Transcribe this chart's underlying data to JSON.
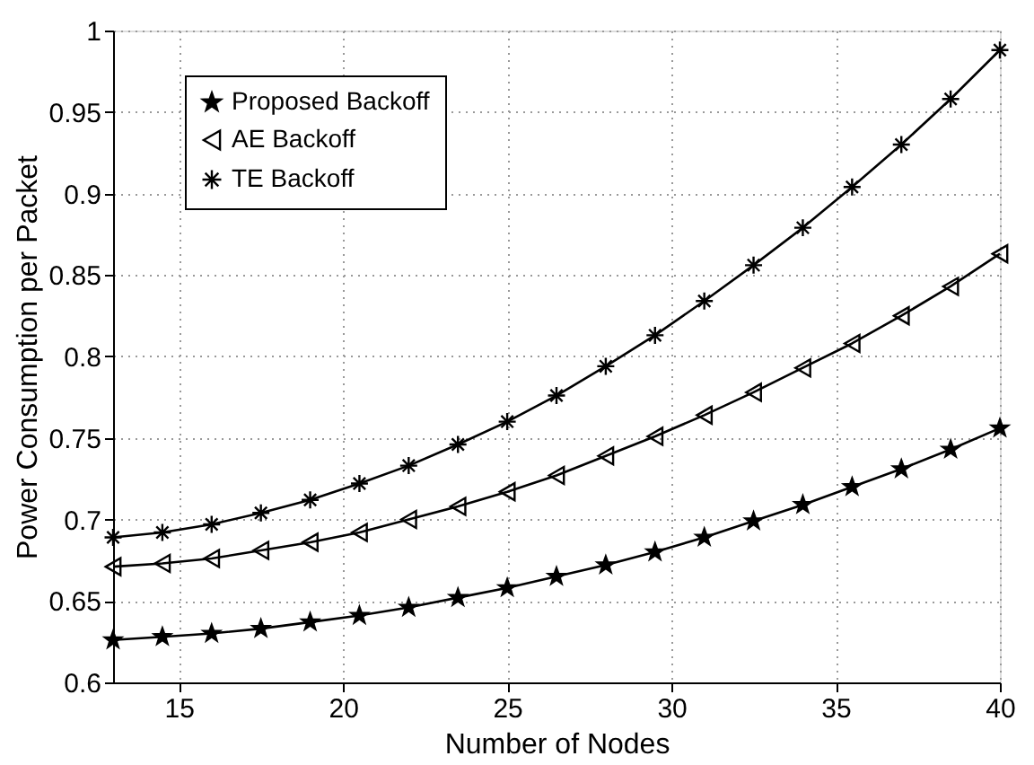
{
  "chart_data": {
    "type": "line",
    "xlabel": "Number of Nodes",
    "ylabel": "Power  Consumption per Packet",
    "x": [
      13,
      14.5,
      16,
      17.5,
      19,
      20.5,
      22,
      23.5,
      25,
      26.5,
      28,
      29.5,
      31,
      32.5,
      34,
      35.5,
      37,
      38.5,
      40
    ],
    "series": [
      {
        "name": "Proposed Backoff",
        "color": "#000000",
        "marker": "star",
        "values": [
          0.626,
          0.628,
          0.63,
          0.633,
          0.637,
          0.641,
          0.646,
          0.652,
          0.658,
          0.665,
          0.672,
          0.68,
          0.689,
          0.699,
          0.709,
          0.72,
          0.731,
          0.743,
          0.756
        ]
      },
      {
        "name": "AE Backoff",
        "color": "#000000",
        "marker": "triangle",
        "values": [
          0.671,
          0.673,
          0.676,
          0.681,
          0.686,
          0.692,
          0.7,
          0.708,
          0.717,
          0.727,
          0.739,
          0.751,
          0.764,
          0.778,
          0.793,
          0.808,
          0.825,
          0.843,
          0.863
        ]
      },
      {
        "name": "TE Backoff",
        "color": "#000000",
        "marker": "cross",
        "values": [
          0.689,
          0.692,
          0.697,
          0.704,
          0.712,
          0.722,
          0.733,
          0.746,
          0.76,
          0.776,
          0.794,
          0.813,
          0.834,
          0.856,
          0.879,
          0.904,
          0.93,
          0.958,
          0.988
        ]
      }
    ],
    "xlim": [
      13,
      40
    ],
    "xticks": [
      15,
      20,
      25,
      30,
      35,
      40
    ],
    "ylim": [
      0.6,
      1
    ],
    "yticks": [
      0.6,
      0.65,
      0.7,
      0.75,
      0.8,
      0.85,
      0.9,
      0.95,
      1
    ],
    "grid": true,
    "legend": "top left",
    "line_style": "solid"
  }
}
